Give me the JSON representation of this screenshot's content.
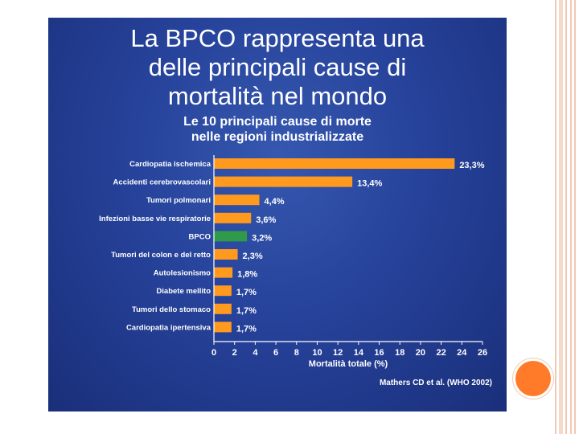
{
  "slide": {
    "title_lines": [
      "La BPCO rappresenta una",
      "delle principali cause di",
      "mortalità nel mondo"
    ],
    "subtitle_lines": [
      "Le 10 principali cause di morte",
      "nelle regioni industrializzate"
    ],
    "source": "Mathers CD et al. (WHO 2002)"
  },
  "chart_data": {
    "type": "bar",
    "orientation": "horizontal",
    "categories": [
      "Cardiopatia ischemica",
      "Accidenti cerebrovascolari",
      "Tumori polmonari",
      "Infezioni basse vie respiratorie",
      "BPCO",
      "Tumori del colon e del retto",
      "Autolesionismo",
      "Diabete mellito",
      "Tumori dello stomaco",
      "Cardiopatia ipertensiva"
    ],
    "values": [
      23.3,
      13.4,
      4.4,
      3.6,
      3.2,
      2.3,
      1.8,
      1.7,
      1.7,
      1.7
    ],
    "value_labels": [
      "23,3%",
      "13,4%",
      "4,4%",
      "3,6%",
      "3,2%",
      "2,3%",
      "1,8%",
      "1,7%",
      "1,7%",
      "1,7%"
    ],
    "highlight_index": 4,
    "xlabel": "Mortalità totale (%)",
    "xlim": [
      0,
      26
    ],
    "xticks": [
      0,
      2,
      4,
      6,
      8,
      10,
      12,
      14,
      16,
      18,
      20,
      22,
      24,
      26
    ],
    "grid": false,
    "colors": {
      "bar": "#ff9a1f",
      "highlight": "#2e9a4a"
    }
  }
}
